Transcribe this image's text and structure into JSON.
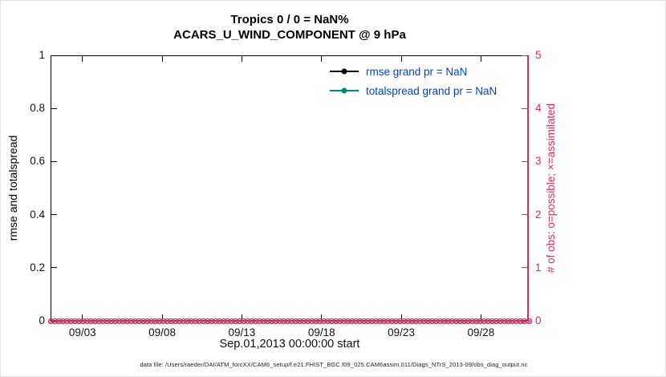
{
  "colors": {
    "crimson": "#d62e63",
    "teal": "#00897b",
    "blue": "#0044cc",
    "axis": "#000000",
    "background": "#ffffff"
  },
  "title": {
    "line1": "Tropics 0 / 0 = NaN%",
    "line2": "ACARS_U_WIND_COMPONENT @ 9 hPa"
  },
  "legend": {
    "items": [
      {
        "label": "rmse grand pr = NaN",
        "color": "#000000",
        "marker": "filled-dot-on-line"
      },
      {
        "label": "totalspread grand pr = NaN",
        "color": "#00897b",
        "marker": "filled-dot-on-line"
      }
    ]
  },
  "axes": {
    "left": {
      "label": "rmse and totalspread",
      "tick_labels": [
        "0",
        "0.2",
        "0.4",
        "0.6",
        "0.8",
        "1"
      ]
    },
    "right": {
      "label": "# of obs: o=possible; ×=assimilated",
      "tick_labels": [
        "0",
        "1",
        "2",
        "3",
        "4",
        "5"
      ]
    },
    "x": {
      "label": "Sep.01,2013 00:00:00 start",
      "tick_labels": [
        "09/03",
        "09/08",
        "09/13",
        "09/18",
        "09/23",
        "09/28"
      ]
    }
  },
  "footer": "data file: /Users/raeder/DAI/ATM_forcXX/CAM6_setup/f.e21.FHIST_BGC.f09_025.CAM6assim.011/Diags_NTrS_2013-09/obs_diag_output.nc",
  "chart_data": {
    "type": "line",
    "title": "Tropics 0 / 0 = NaN%",
    "subtitle": "ACARS_U_WIND_COMPONENT @ 9 hPa",
    "xlabel": "Sep.01,2013 00:00:00 start",
    "x_range_days": [
      0,
      30
    ],
    "x_tick_days": [
      2,
      7,
      12,
      17,
      22,
      27
    ],
    "x_tick_labels": [
      "09/03",
      "09/08",
      "09/13",
      "09/18",
      "09/23",
      "09/28"
    ],
    "y_left": {
      "label": "rmse and totalspread",
      "range": [
        0,
        1
      ],
      "ticks": [
        0,
        0.2,
        0.4,
        0.6,
        0.8,
        1
      ]
    },
    "y_right": {
      "label": "# of obs: o=possible; ×=assimilated",
      "range": [
        0,
        5
      ],
      "ticks": [
        0,
        1,
        2,
        3,
        4,
        5
      ]
    },
    "grid": false,
    "legend_position": "upper-right-inside",
    "series": [
      {
        "name": "rmse",
        "legend": "rmse grand pr = NaN",
        "grand_pr": "NaN",
        "color": "#000000",
        "values": [],
        "note": "all values NaN - no line drawn"
      },
      {
        "name": "totalspread",
        "legend": "totalspread grand pr = NaN",
        "grand_pr": "NaN",
        "color": "#00897b",
        "values": [],
        "note": "all values NaN - no line drawn"
      },
      {
        "name": "obs_possible",
        "axis": "right",
        "marker": "o",
        "color": "#d62e63",
        "constant_value": 0,
        "count": 120
      },
      {
        "name": "obs_assimilated",
        "axis": "right",
        "marker": "x",
        "color": "#d62e63",
        "constant_value": 0,
        "count": 120
      }
    ]
  }
}
